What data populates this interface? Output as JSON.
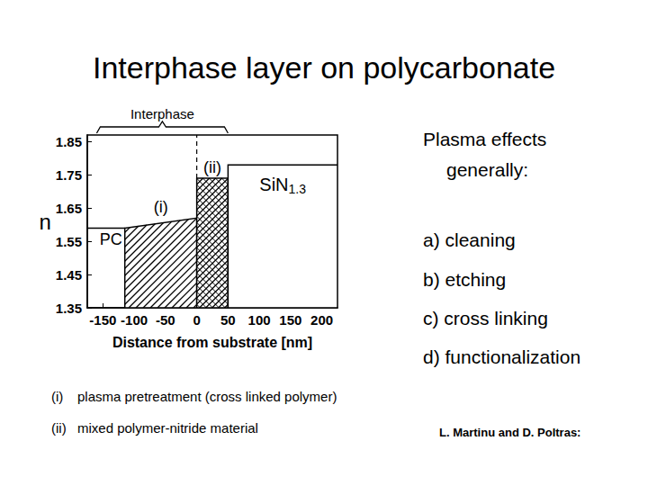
{
  "title": "Interphase layer on polycarbonate",
  "chart_data": {
    "type": "region",
    "xlabel": "Distance from substrate [nm]",
    "ylabel": "n",
    "xlim": [
      -175,
      225
    ],
    "xticks": [
      -150,
      -100,
      -50,
      0,
      50,
      100,
      150,
      200
    ],
    "ylim": [
      1.35,
      1.87
    ],
    "yticks": [
      1.35,
      1.45,
      1.55,
      1.65,
      1.75,
      1.85
    ],
    "grid": false,
    "series": [
      {
        "name": "PC",
        "type": "line",
        "x": [
          -175,
          -115
        ],
        "values": [
          1.59,
          1.59
        ]
      },
      {
        "name": "(i)",
        "type": "hatched",
        "x": [
          -115,
          0
        ],
        "values": [
          1.59,
          1.62
        ]
      },
      {
        "name": "(ii)",
        "type": "crosshatched",
        "x": [
          0,
          50
        ],
        "values": [
          1.74,
          1.74
        ]
      },
      {
        "name": "SiN1.3",
        "type": "box",
        "x": [
          50,
          225
        ],
        "values": [
          1.78,
          1.78
        ]
      }
    ],
    "annotations": [
      {
        "text": "Interphase",
        "x": [
          -160,
          50
        ]
      }
    ],
    "vlines": [
      {
        "x": 0,
        "line_style": "dashed"
      }
    ]
  },
  "list": {
    "heading": "Plasma effects generally:",
    "items": [
      "a) cleaning",
      "b) etching",
      "c) cross linking",
      "d) functionalization"
    ]
  },
  "footnotes": [
    {
      "marker": "(i)",
      "text": "plasma pretreatment (cross linked polymer)"
    },
    {
      "marker": "(ii)",
      "text": "mixed polymer-nitride material"
    }
  ],
  "source": "L. Martinu and D. Poltras:"
}
